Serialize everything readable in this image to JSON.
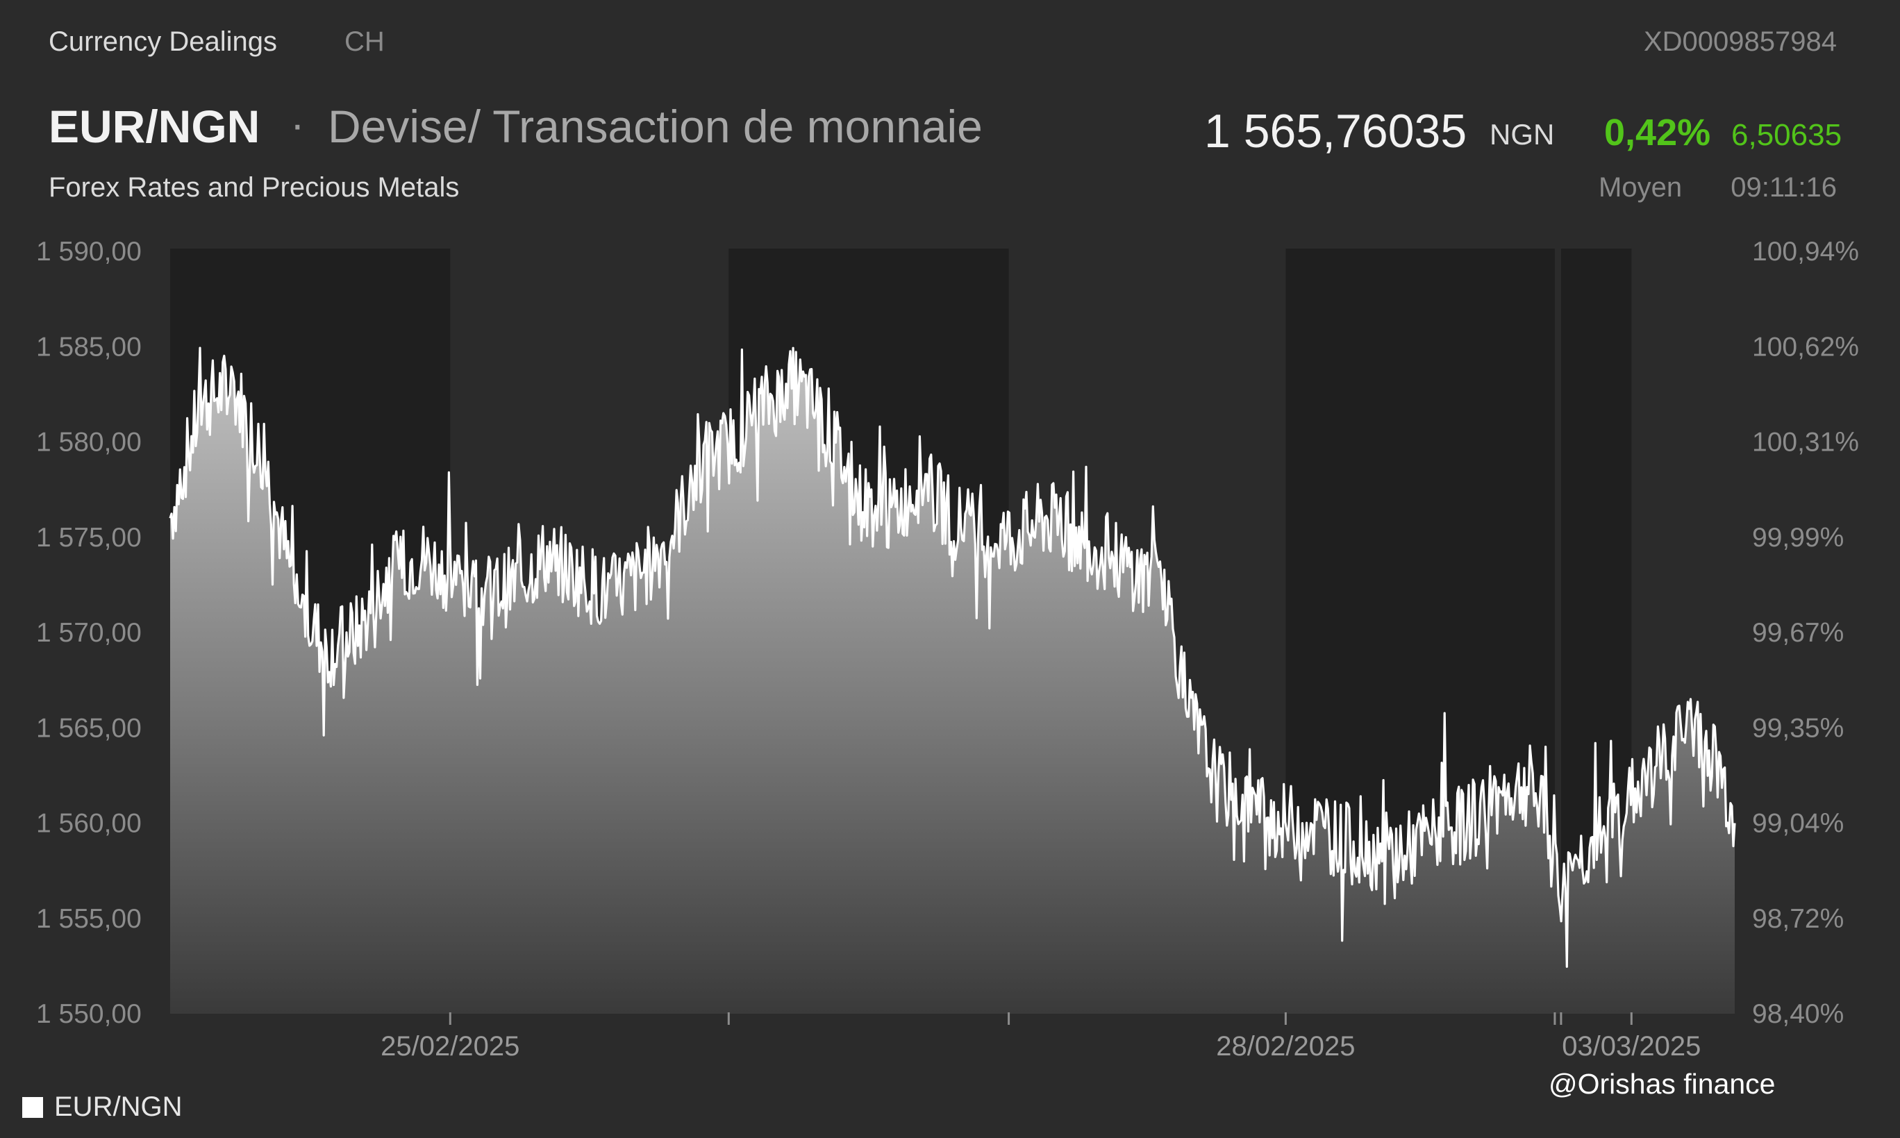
{
  "header": {
    "market": "Currency Dealings",
    "exchange": "CH",
    "isin": "XD0009857984",
    "pair": "EUR/NGN",
    "separator": "·",
    "description": "Devise/ Transaction de monnaie",
    "subtitle": "Forex Rates and Precious Metals",
    "price": "1 565,76035",
    "currency": "NGN",
    "change_pct": "0,42%",
    "change_abs": "6,50635",
    "price_mode": "Moyen",
    "time": "09:11:16"
  },
  "legend": {
    "label": "EUR/NGN"
  },
  "watermark": "@Orishas finance",
  "colors": {
    "background": "#2b2b2b",
    "shade_band": "#1f1f1f",
    "line": "#ffffff",
    "positive": "#52c41a"
  },
  "chart_data": {
    "type": "area",
    "series": [
      {
        "name": "EUR/NGN",
        "x": [
          0,
          0.02,
          0.04,
          0.06,
          0.08,
          0.1,
          0.12,
          0.14,
          0.16,
          0.18,
          0.2,
          0.22,
          0.24,
          0.26,
          0.28,
          0.3,
          0.32,
          0.34,
          0.36,
          0.38,
          0.4,
          0.42,
          0.44,
          0.46,
          0.48,
          0.5,
          0.52,
          0.54,
          0.56,
          0.58,
          0.6,
          0.62,
          0.635,
          0.65,
          0.67,
          0.69,
          0.71,
          0.73,
          0.75,
          0.77,
          0.79,
          0.81,
          0.83,
          0.85,
          0.87,
          0.88,
          0.89,
          0.9,
          0.92,
          0.94,
          0.96,
          0.975,
          0.99,
          1.0
        ],
        "y": [
          1576,
          1582,
          1583,
          1579,
          1572,
          1569,
          1570,
          1573,
          1574,
          1573,
          1572,
          1572.5,
          1574,
          1573,
          1572,
          1573,
          1575,
          1579,
          1580,
          1582,
          1583,
          1581,
          1577,
          1576,
          1578,
          1576,
          1575,
          1575,
          1576,
          1575,
          1574,
          1573,
          1573,
          1566,
          1562,
          1561,
          1560,
          1560,
          1559,
          1558.5,
          1558.5,
          1559.5,
          1560,
          1561.5,
          1562,
          1560,
          1556,
          1558,
          1560,
          1562,
          1564,
          1565,
          1563,
          1560
        ]
      }
    ],
    "x_tick_labels": [
      "25/02/2025",
      "28/02/2025",
      "03/03/2025"
    ],
    "x_tick_positions": [
      0.179,
      0.713,
      0.934
    ],
    "shaded_periods": [
      [
        0,
        0.179
      ],
      [
        0.357,
        0.536
      ],
      [
        0.713,
        0.885
      ],
      [
        0.889,
        0.934
      ]
    ],
    "y_left_ticks": [
      "1 590,00",
      "1 585,00",
      "1 580,00",
      "1 575,00",
      "1 570,00",
      "1 565,00",
      "1 560,00",
      "1 555,00",
      "1 550,00"
    ],
    "y_right_ticks": [
      "100,94%",
      "100,62%",
      "100,31%",
      "99,99%",
      "99,67%",
      "99,35%",
      "99,04%",
      "98,72%",
      "98,40%"
    ],
    "ylim": [
      1550,
      1590
    ],
    "grid": false
  }
}
